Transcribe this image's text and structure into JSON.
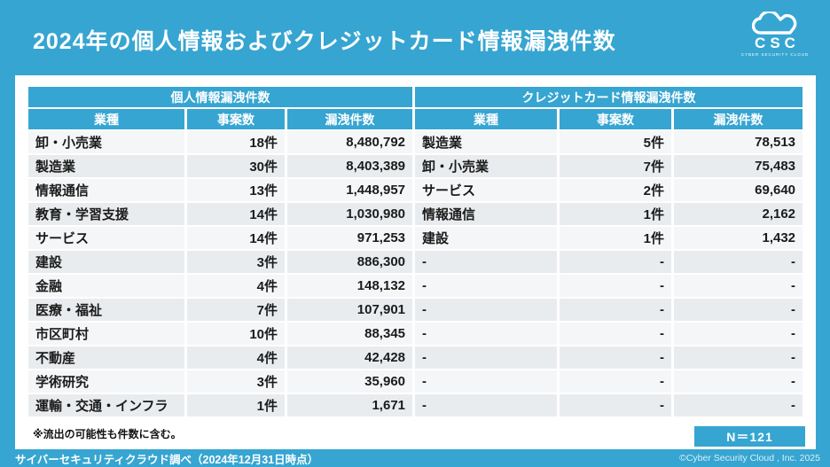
{
  "page": {
    "title": "2024年の個人情報およびクレジットカード情報漏洩件数",
    "brand": {
      "name": "CSC",
      "subtitle": "CYBER SECURITY CLOUD",
      "logo_icon": "cloud-icon"
    },
    "footnote": "※流出の可能性も件数に含む。",
    "sample_badge": "N＝121",
    "footer_source": "サイバーセキュリティクラウド調べ（2024年12月31日時点）",
    "footer_copyright": "©Cyber Security Cloud , Inc. 2025"
  },
  "colors": {
    "accent_blue": "#36a5d1",
    "panel_white": "#ffffff",
    "row_odd": "#f4f6f8",
    "row_even": "#e9ecee",
    "text_dark": "#1b1b1b"
  },
  "table": {
    "groups": [
      {
        "label": "個人情報漏洩件数"
      },
      {
        "label": "クレジットカード情報漏洩件数"
      }
    ],
    "columns": [
      "業種",
      "事案数",
      "漏洩件数"
    ],
    "rows": [
      [
        "卸・小売業",
        "18件",
        "8,480,792",
        "製造業",
        "5件",
        "78,513"
      ],
      [
        "製造業",
        "30件",
        "8,403,389",
        "卸・小売業",
        "7件",
        "75,483"
      ],
      [
        "情報通信",
        "13件",
        "1,448,957",
        "サービス",
        "2件",
        "69,640"
      ],
      [
        "教育・学習支援",
        "14件",
        "1,030,980",
        "情報通信",
        "1件",
        "2,162"
      ],
      [
        "サービス",
        "14件",
        "971,253",
        "建設",
        "1件",
        "1,432"
      ],
      [
        "建設",
        "3件",
        "886,300",
        "-",
        "-",
        "-"
      ],
      [
        "金融",
        "4件",
        "148,132",
        "-",
        "-",
        "-"
      ],
      [
        "医療・福祉",
        "7件",
        "107,901",
        "-",
        "-",
        "-"
      ],
      [
        "市区町村",
        "10件",
        "88,345",
        "-",
        "-",
        "-"
      ],
      [
        "不動産",
        "4件",
        "42,428",
        "-",
        "-",
        "-"
      ],
      [
        "学術研究",
        "3件",
        "35,960",
        "-",
        "-",
        "-"
      ],
      [
        "運輸・交通・インフラ",
        "1件",
        "1,671",
        "-",
        "-",
        "-"
      ]
    ]
  },
  "chart_data": [
    {
      "type": "table",
      "title": "個人情報漏洩件数",
      "columns": [
        "業種",
        "事案数",
        "漏洩件数"
      ],
      "rows": [
        [
          "卸・小売業",
          18,
          8480792
        ],
        [
          "製造業",
          30,
          8403389
        ],
        [
          "情報通信",
          13,
          1448957
        ],
        [
          "教育・学習支援",
          14,
          1030980
        ],
        [
          "サービス",
          14,
          971253
        ],
        [
          "建設",
          3,
          886300
        ],
        [
          "金融",
          4,
          148132
        ],
        [
          "医療・福祉",
          7,
          107901
        ],
        [
          "市区町村",
          10,
          88345
        ],
        [
          "不動産",
          4,
          42428
        ],
        [
          "学術研究",
          3,
          35960
        ],
        [
          "運輸・交通・インフラ",
          1,
          1671
        ]
      ],
      "note": "※流出の可能性も件数に含む。",
      "sample_size": "N＝121"
    },
    {
      "type": "table",
      "title": "クレジットカード情報漏洩件数",
      "columns": [
        "業種",
        "事案数",
        "漏洩件数"
      ],
      "rows": [
        [
          "製造業",
          5,
          78513
        ],
        [
          "卸・小売業",
          7,
          75483
        ],
        [
          "サービス",
          2,
          69640
        ],
        [
          "情報通信",
          1,
          2162
        ],
        [
          "建設",
          1,
          1432
        ]
      ],
      "note": "※流出の可能性も件数に含む。",
      "sample_size": "N＝121"
    }
  ]
}
